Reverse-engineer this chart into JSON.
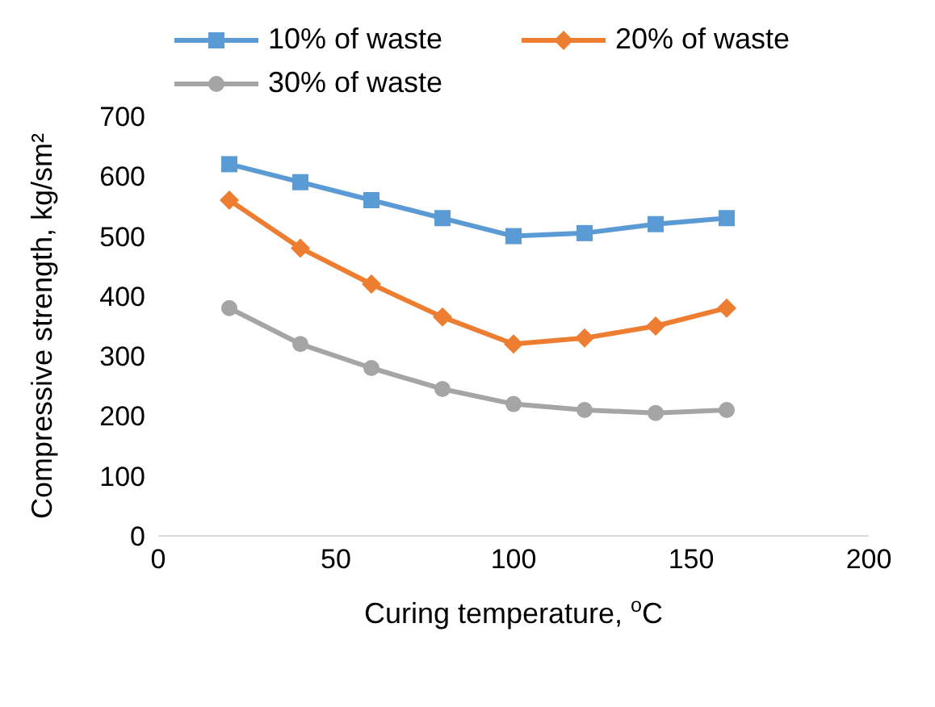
{
  "chart_data": {
    "type": "line",
    "xlabel": "Curing temperature, $^{o}$C",
    "ylabel": "Compressive strength, kg/sm²",
    "x": [
      20,
      40,
      60,
      80,
      100,
      120,
      140,
      160
    ],
    "series": [
      {
        "name": "10% of waste",
        "color": "#5b9bd5",
        "marker": "square",
        "values": [
          620,
          590,
          560,
          530,
          500,
          505,
          520,
          530
        ]
      },
      {
        "name": "20% of waste",
        "color": "#ed7d31",
        "marker": "diamond",
        "values": [
          560,
          480,
          420,
          365,
          320,
          330,
          350,
          380
        ]
      },
      {
        "name": "30% of waste",
        "color": "#a5a5a5",
        "marker": "circle",
        "values": [
          380,
          320,
          280,
          245,
          220,
          210,
          205,
          210
        ]
      }
    ],
    "xlim": [
      0,
      200
    ],
    "xticks": [
      0,
      50,
      100,
      150,
      200
    ],
    "ylim": [
      0,
      700
    ],
    "yticks": [
      0,
      100,
      200,
      300,
      400,
      500,
      600,
      700
    ],
    "grid": false,
    "legend": "top"
  }
}
